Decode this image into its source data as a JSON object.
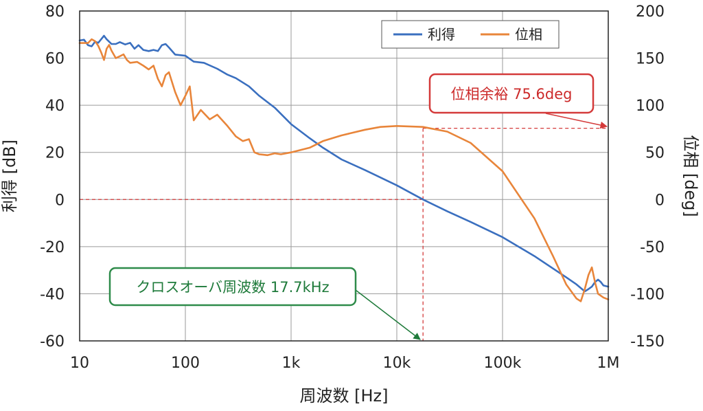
{
  "chart_data": {
    "type": "line",
    "xscale": "log",
    "xlim": [
      10,
      1000000
    ],
    "xticks": [
      10,
      100,
      1000,
      10000,
      100000,
      1000000
    ],
    "xtick_labels": [
      "10",
      "100",
      "1k",
      "10k",
      "100k",
      "1M"
    ],
    "xlabel": "周波数 [Hz]",
    "ylabel_left": "利得 [dB]",
    "ylabel_right": "位相 [deg]",
    "ylim_left": [
      -60,
      80
    ],
    "ylim_right": [
      -150,
      200
    ],
    "yticks_left": [
      80,
      60,
      40,
      20,
      0,
      -20,
      -40,
      -60
    ],
    "yticks_right": [
      200,
      150,
      100,
      50,
      0,
      -50,
      -100,
      -150
    ],
    "grid": true,
    "legend_position": "top-right",
    "series": [
      {
        "name": "利得",
        "axis": "left",
        "color": "#3a6fbf",
        "points": [
          [
            10,
            67.5
          ],
          [
            11,
            67.8
          ],
          [
            12,
            65.5
          ],
          [
            13,
            65
          ],
          [
            14,
            67
          ],
          [
            15,
            66.5
          ],
          [
            16,
            68
          ],
          [
            17,
            69.5
          ],
          [
            18,
            68
          ],
          [
            20,
            66
          ],
          [
            22,
            66
          ],
          [
            24,
            66.8
          ],
          [
            27,
            65.8
          ],
          [
            30,
            66.5
          ],
          [
            33,
            64
          ],
          [
            36,
            65.5
          ],
          [
            40,
            63.5
          ],
          [
            45,
            63
          ],
          [
            50,
            63.5
          ],
          [
            55,
            63
          ],
          [
            60,
            65.5
          ],
          [
            65,
            66
          ],
          [
            70,
            64.5
          ],
          [
            80,
            61.5
          ],
          [
            100,
            61
          ],
          [
            120,
            58.5
          ],
          [
            150,
            58
          ],
          [
            200,
            55.5
          ],
          [
            250,
            53
          ],
          [
            300,
            51.5
          ],
          [
            400,
            48
          ],
          [
            500,
            44
          ],
          [
            700,
            39
          ],
          [
            1000,
            32
          ],
          [
            1500,
            26
          ],
          [
            2000,
            22
          ],
          [
            3000,
            17
          ],
          [
            5000,
            12.5
          ],
          [
            10000,
            6
          ],
          [
            17700,
            0
          ],
          [
            30000,
            -5
          ],
          [
            50000,
            -9.5
          ],
          [
            100000,
            -16
          ],
          [
            200000,
            -24
          ],
          [
            400000,
            -33
          ],
          [
            500000,
            -36
          ],
          [
            600000,
            -39
          ],
          [
            650000,
            -38
          ],
          [
            700000,
            -37
          ],
          [
            750000,
            -35
          ],
          [
            800000,
            -34
          ],
          [
            850000,
            -35
          ],
          [
            900000,
            -36.5
          ],
          [
            1000000,
            -37
          ]
        ]
      },
      {
        "name": "位相",
        "axis": "right",
        "color": "#e8853a",
        "points": [
          [
            10,
            166
          ],
          [
            12,
            166
          ],
          [
            13,
            170
          ],
          [
            14,
            168
          ],
          [
            15,
            163
          ],
          [
            16,
            156
          ],
          [
            17,
            148
          ],
          [
            18,
            160
          ],
          [
            19,
            164
          ],
          [
            20,
            158
          ],
          [
            22,
            150
          ],
          [
            24,
            152
          ],
          [
            26,
            154
          ],
          [
            28,
            148
          ],
          [
            30,
            145
          ],
          [
            35,
            146
          ],
          [
            40,
            142
          ],
          [
            45,
            138
          ],
          [
            50,
            142
          ],
          [
            55,
            128
          ],
          [
            60,
            120
          ],
          [
            65,
            132
          ],
          [
            70,
            135
          ],
          [
            80,
            114
          ],
          [
            90,
            100
          ],
          [
            100,
            110
          ],
          [
            110,
            120
          ],
          [
            120,
            84
          ],
          [
            140,
            95
          ],
          [
            170,
            85
          ],
          [
            200,
            90
          ],
          [
            250,
            78
          ],
          [
            300,
            67
          ],
          [
            350,
            62
          ],
          [
            400,
            64
          ],
          [
            450,
            50
          ],
          [
            500,
            48
          ],
          [
            600,
            47
          ],
          [
            700,
            49
          ],
          [
            800,
            48
          ],
          [
            1000,
            50
          ],
          [
            1500,
            55
          ],
          [
            2000,
            62
          ],
          [
            3000,
            68
          ],
          [
            5000,
            74
          ],
          [
            7000,
            77
          ],
          [
            10000,
            78
          ],
          [
            17700,
            77
          ],
          [
            30000,
            72
          ],
          [
            50000,
            60
          ],
          [
            100000,
            30
          ],
          [
            200000,
            -20
          ],
          [
            300000,
            -60
          ],
          [
            400000,
            -90
          ],
          [
            500000,
            -105
          ],
          [
            550000,
            -108
          ],
          [
            600000,
            -95
          ],
          [
            650000,
            -80
          ],
          [
            700000,
            -72
          ],
          [
            750000,
            -88
          ],
          [
            800000,
            -100
          ],
          [
            900000,
            -104
          ],
          [
            1000000,
            -106
          ]
        ]
      }
    ],
    "annotations": {
      "phase_margin": {
        "text": "位相余裕  75.6deg",
        "color": "#d43a3a",
        "value_deg": 75.6,
        "frequency_hz": 17700
      },
      "crossover": {
        "text": "クロスオーバ周波数  17.7kHz",
        "color": "#2e8b4a",
        "frequency_hz": 17700,
        "gain_db": 0
      }
    }
  }
}
